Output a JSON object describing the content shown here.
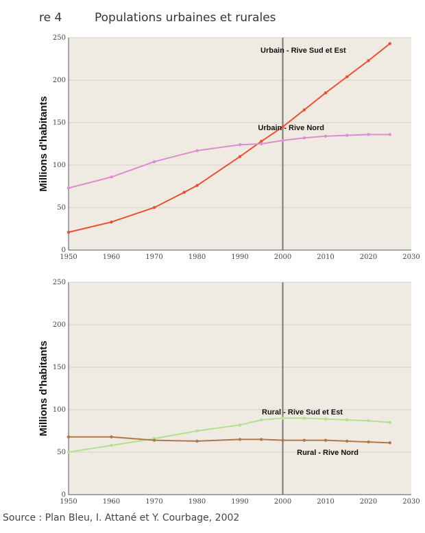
{
  "figure": {
    "label": "re 4",
    "title": "Populations urbaines et rurales",
    "source": "Source : Plan Bleu, I. Attané et Y. Courbage, 2002"
  },
  "colors": {
    "plot_bg": "#efebe3",
    "grid": "#d5d0c6",
    "marker_line": "#777777",
    "urbain_sud": "#e8502e",
    "urbain_nord": "#d98fd0",
    "rural_sud": "#b3e08c",
    "rural_nord": "#b07845"
  },
  "chart_data": [
    {
      "type": "line",
      "title": "",
      "ylabel": "Millions d'habitants",
      "xlabel": "",
      "xlim": [
        1950,
        2030
      ],
      "ylim": [
        0,
        250
      ],
      "xticks": [
        "1950",
        "1960",
        "1970",
        "1980",
        "1990",
        "2000",
        "2010",
        "2020",
        "2030"
      ],
      "yticks": [
        "0",
        "50",
        "100",
        "150",
        "200",
        "250"
      ],
      "grid": true,
      "vertical_marker": 2000,
      "series": [
        {
          "name": "Urbain - Rive Sud et Est",
          "color_key": "urbain_sud",
          "x": [
            1950,
            1960,
            1970,
            1977,
            1980,
            1990,
            1995,
            2000,
            2005,
            2010,
            2015,
            2020,
            2025
          ],
          "y": [
            21,
            33,
            50,
            68,
            76,
            110,
            128,
            145,
            165,
            185,
            204,
            223,
            243
          ]
        },
        {
          "name": "Urbain - Rive Nord",
          "color_key": "urbain_nord",
          "x": [
            1950,
            1960,
            1970,
            1980,
            1990,
            1995,
            2000,
            2005,
            2010,
            2015,
            2020,
            2025
          ],
          "y": [
            73,
            86,
            104,
            117,
            124,
            125,
            129,
            132,
            134,
            135,
            136,
            136
          ]
        }
      ]
    },
    {
      "type": "line",
      "title": "",
      "ylabel": "Millions d'habitants",
      "xlabel": "",
      "xlim": [
        1950,
        2030
      ],
      "ylim": [
        0,
        250
      ],
      "xticks": [
        "1950",
        "1960",
        "1970",
        "1980",
        "1990",
        "2000",
        "2010",
        "2020",
        "2030"
      ],
      "yticks": [
        "0",
        "50",
        "100",
        "150",
        "200",
        "250"
      ],
      "grid": true,
      "vertical_marker": 2000,
      "series": [
        {
          "name": "Rural - Rive Sud et Est",
          "color_key": "rural_sud",
          "x": [
            1950,
            1960,
            1970,
            1980,
            1990,
            1995,
            2000,
            2005,
            2010,
            2015,
            2020,
            2025
          ],
          "y": [
            50,
            58,
            66,
            75,
            82,
            88,
            90,
            90,
            89,
            88,
            87,
            85
          ]
        },
        {
          "name": "Rural - Rive Nord",
          "color_key": "rural_nord",
          "x": [
            1950,
            1960,
            1970,
            1980,
            1990,
            1995,
            2000,
            2005,
            2010,
            2015,
            2020,
            2025
          ],
          "y": [
            68,
            68,
            64,
            63,
            65,
            65,
            64,
            64,
            64,
            63,
            62,
            61
          ]
        }
      ]
    }
  ]
}
